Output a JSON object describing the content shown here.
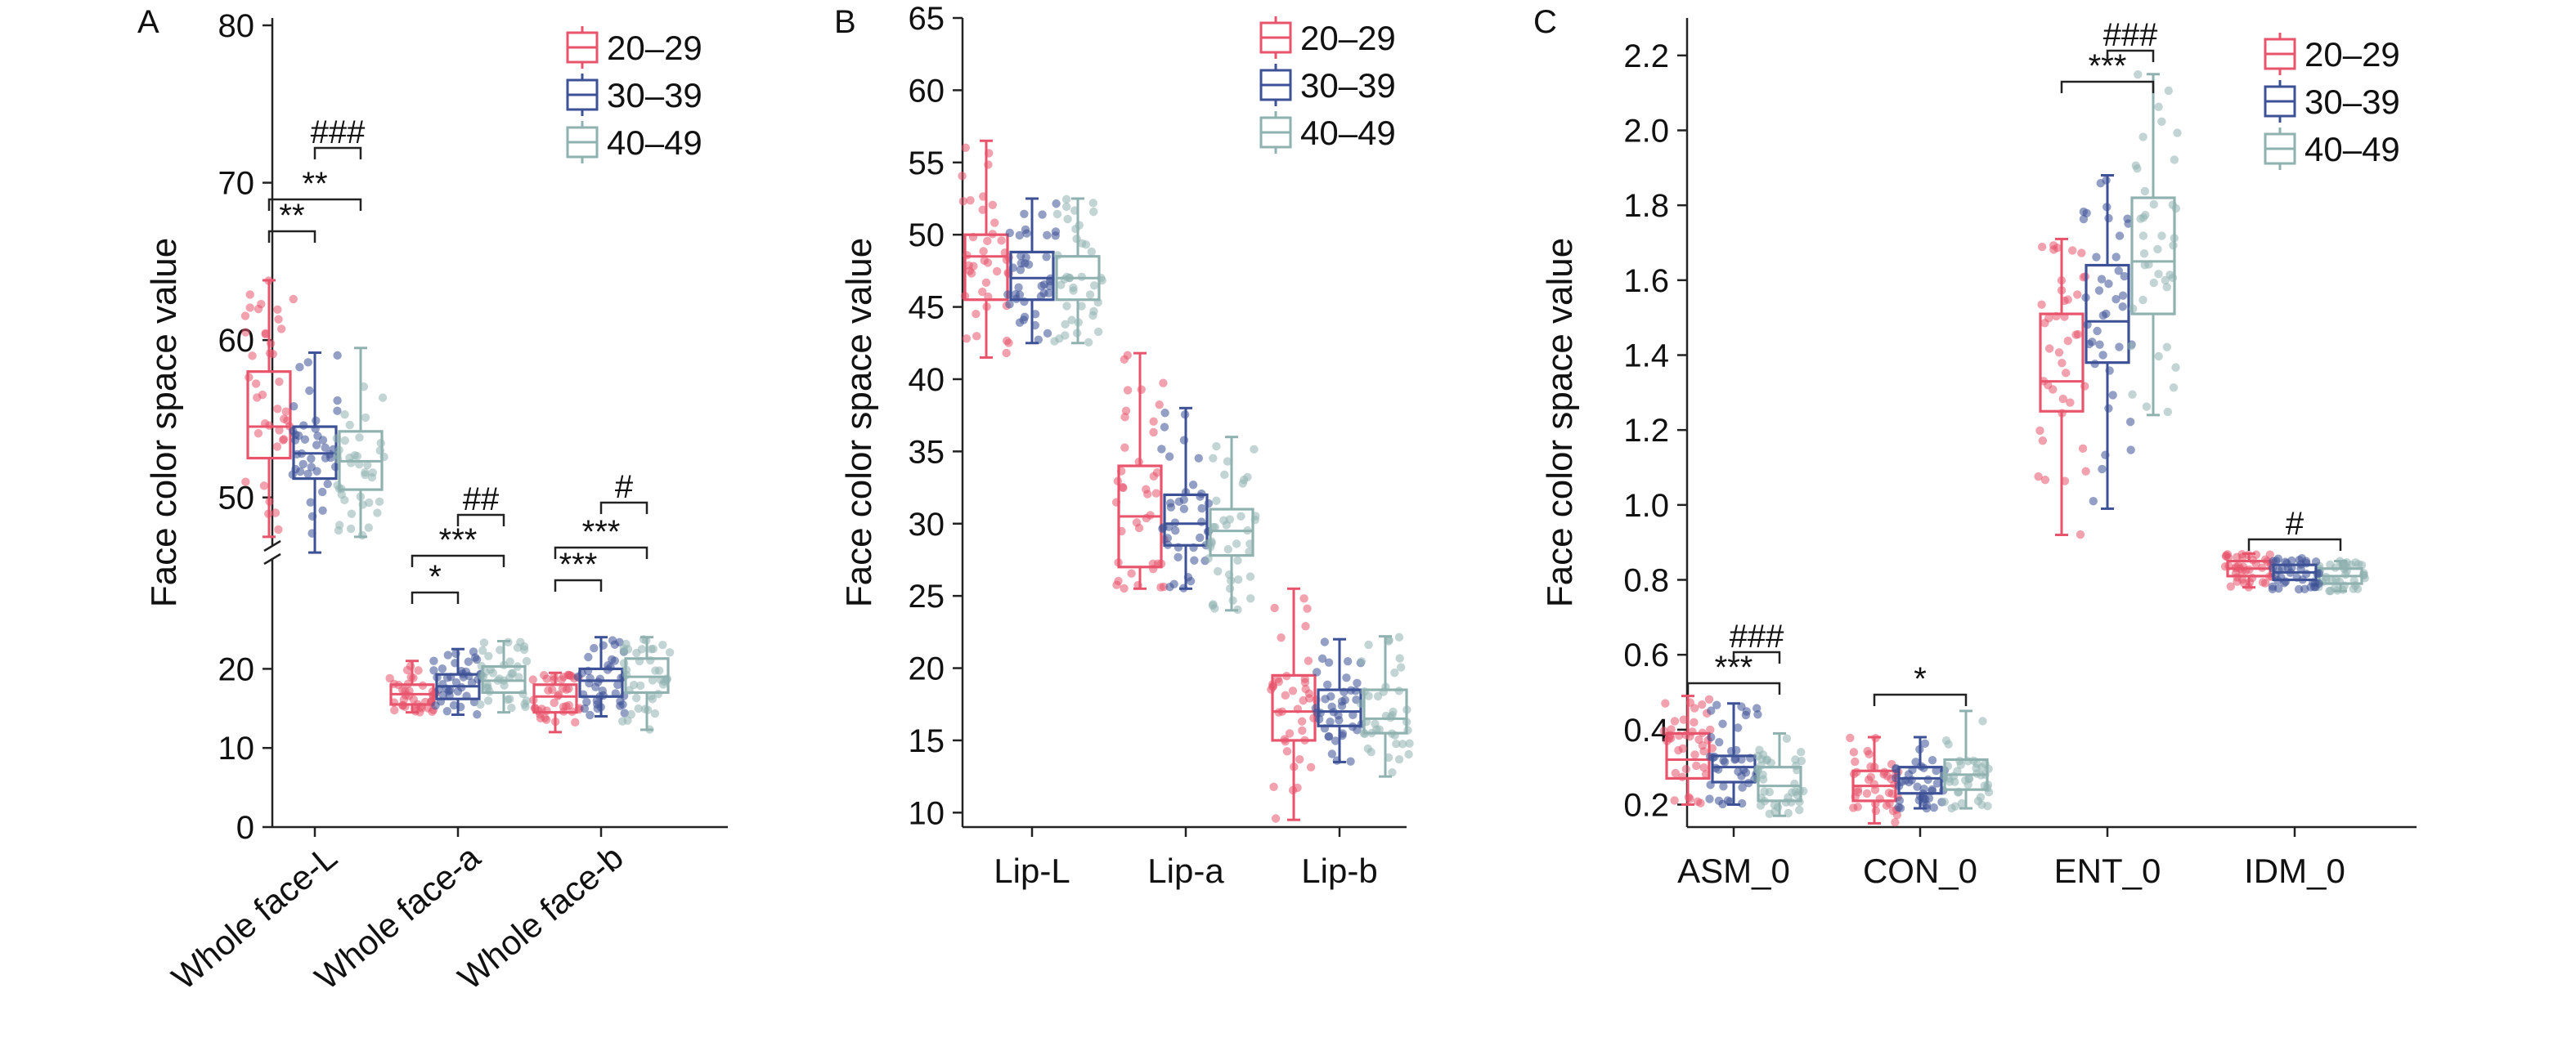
{
  "chart_data": [
    {
      "panel": "A",
      "type": "box",
      "ylabel": "Face color space value",
      "y_segments": [
        {
          "range": [
            0,
            25
          ],
          "ticks": [
            0,
            10,
            20
          ]
        },
        {
          "range": [
            45,
            80
          ],
          "ticks": [
            50,
            60,
            70,
            80
          ]
        }
      ],
      "y_break": true,
      "categories": [
        "Whole face-L",
        "Whole face-a",
        "Whole face-b"
      ],
      "legend": {
        "position": "top-right",
        "entries": [
          "20–29",
          "30–39",
          "40–49"
        ]
      },
      "series": [
        {
          "name": "20–29",
          "color": "#e8546b",
          "boxes": [
            {
              "min": 47.5,
              "q1": 52.5,
              "median": 54.5,
              "q3": 58.0,
              "max": 63.8
            },
            {
              "min": 14.5,
              "q1": 15.5,
              "median": 16.8,
              "q3": 18.0,
              "max": 21.0
            },
            {
              "min": 12.0,
              "q1": 14.5,
              "median": 16.5,
              "q3": 18.0,
              "max": 19.5
            }
          ]
        },
        {
          "name": "30–39",
          "color": "#3d5196",
          "boxes": [
            {
              "min": 46.5,
              "q1": 51.2,
              "median": 52.8,
              "q3": 54.5,
              "max": 59.2
            },
            {
              "min": 14.2,
              "q1": 16.2,
              "median": 17.8,
              "q3": 19.3,
              "max": 22.5
            },
            {
              "min": 14.0,
              "q1": 16.5,
              "median": 18.5,
              "q3": 20.0,
              "max": 24.0
            }
          ]
        },
        {
          "name": "40–49",
          "color": "#8fb2b0",
          "boxes": [
            {
              "min": 47.5,
              "q1": 50.5,
              "median": 52.3,
              "q3": 54.2,
              "max": 59.5
            },
            {
              "min": 14.5,
              "q1": 17.0,
              "median": 18.5,
              "q3": 20.3,
              "max": 23.5
            },
            {
              "min": 12.3,
              "q1": 17.0,
              "median": 19.0,
              "q3": 21.3,
              "max": 24.0
            }
          ]
        }
      ],
      "annotations": [
        {
          "label": "**",
          "from": 0,
          "to": 1,
          "cat": 0
        },
        {
          "label": "**",
          "from": 0,
          "to": 2,
          "cat": 0
        },
        {
          "label": "###",
          "from": 1,
          "to": 2,
          "cat": 0
        },
        {
          "label": "*",
          "from": 0,
          "to": 1,
          "cat": 1
        },
        {
          "label": "***",
          "from": 0,
          "to": 2,
          "cat": 1
        },
        {
          "label": "##",
          "from": 1,
          "to": 2,
          "cat": 1
        },
        {
          "label": "***",
          "from": 0,
          "to": 1,
          "cat": 2
        },
        {
          "label": "***",
          "from": 0,
          "to": 2,
          "cat": 2
        },
        {
          "label": "#",
          "from": 1,
          "to": 2,
          "cat": 2
        }
      ]
    },
    {
      "panel": "B",
      "type": "box",
      "ylabel": "Face color space value",
      "ylim": [
        9,
        65
      ],
      "yticks": [
        10,
        15,
        20,
        25,
        30,
        35,
        40,
        45,
        50,
        55,
        60,
        65
      ],
      "categories": [
        "Lip-L",
        "Lip-a",
        "Lip-b"
      ],
      "legend": {
        "position": "top-right",
        "entries": [
          "20–29",
          "30–39",
          "40–49"
        ]
      },
      "series": [
        {
          "name": "20–29",
          "color": "#e8546b",
          "boxes": [
            {
              "min": 41.5,
              "q1": 45.5,
              "median": 48.5,
              "q3": 50.0,
              "max": 56.5
            },
            {
              "min": 25.5,
              "q1": 27.0,
              "median": 30.5,
              "q3": 34.0,
              "max": 41.8
            },
            {
              "min": 9.5,
              "q1": 15.0,
              "median": 17.0,
              "q3": 19.5,
              "max": 25.5
            }
          ]
        },
        {
          "name": "30–39",
          "color": "#3d5196",
          "boxes": [
            {
              "min": 42.5,
              "q1": 45.5,
              "median": 47.0,
              "q3": 48.8,
              "max": 52.5
            },
            {
              "min": 25.5,
              "q1": 28.5,
              "median": 30.0,
              "q3": 32.0,
              "max": 38.0
            },
            {
              "min": 13.5,
              "q1": 16.0,
              "median": 17.0,
              "q3": 18.5,
              "max": 22.0
            }
          ]
        },
        {
          "name": "40–49",
          "color": "#8fb2b0",
          "boxes": [
            {
              "min": 42.5,
              "q1": 45.5,
              "median": 47.0,
              "q3": 48.5,
              "max": 52.5
            },
            {
              "min": 24.0,
              "q1": 27.8,
              "median": 29.5,
              "q3": 31.0,
              "max": 36.0
            },
            {
              "min": 12.5,
              "q1": 15.5,
              "median": 16.5,
              "q3": 18.5,
              "max": 22.2
            }
          ]
        }
      ],
      "annotations": []
    },
    {
      "panel": "C",
      "type": "box",
      "ylabel": "Face color space value",
      "ylim": [
        0.14,
        2.3
      ],
      "yticks": [
        0.2,
        0.4,
        0.6,
        0.8,
        1.0,
        1.2,
        1.4,
        1.6,
        1.8,
        2.0,
        2.2
      ],
      "yticklabels": [
        "0.2",
        "0.4",
        "0.6",
        "0.8",
        "1.0",
        "1.2",
        "1.4",
        "1.6",
        "1.8",
        "2.0",
        "2.2"
      ],
      "categories": [
        "ASM_0",
        "CON_0",
        "ENT_0",
        "IDM_0"
      ],
      "legend": {
        "position": "top-right",
        "entries": [
          "20–29",
          "30–39",
          "40–49"
        ]
      },
      "series": [
        {
          "name": "20–29",
          "color": "#e8546b",
          "boxes": [
            {
              "min": 0.2,
              "q1": 0.27,
              "median": 0.32,
              "q3": 0.39,
              "max": 0.49
            },
            {
              "min": 0.15,
              "q1": 0.21,
              "median": 0.25,
              "q3": 0.29,
              "max": 0.38
            },
            {
              "min": 0.92,
              "q1": 1.25,
              "median": 1.33,
              "q3": 1.51,
              "max": 1.71
            },
            {
              "min": 0.78,
              "q1": 0.81,
              "median": 0.83,
              "q3": 0.85,
              "max": 0.87
            }
          ]
        },
        {
          "name": "30–39",
          "color": "#3d5196",
          "boxes": [
            {
              "min": 0.2,
              "q1": 0.26,
              "median": 0.3,
              "q3": 0.33,
              "max": 0.47
            },
            {
              "min": 0.19,
              "q1": 0.23,
              "median": 0.27,
              "q3": 0.3,
              "max": 0.38
            },
            {
              "min": 0.99,
              "q1": 1.38,
              "median": 1.49,
              "q3": 1.64,
              "max": 1.88
            }
          ]
        },
        {
          "name": "40–49",
          "color": "#8fb2b0",
          "boxes": [
            {
              "min": 0.17,
              "q1": 0.21,
              "median": 0.25,
              "q3": 0.3,
              "max": 0.39
            },
            {
              "min": 0.19,
              "q1": 0.24,
              "median": 0.28,
              "q3": 0.32,
              "max": 0.45
            },
            {
              "min": 1.24,
              "q1": 1.51,
              "median": 1.65,
              "q3": 1.82,
              "max": 2.15
            },
            {
              "min": 0.77,
              "q1": 0.79,
              "median": 0.81,
              "q3": 0.83,
              "max": 0.85
            }
          ]
        }
      ],
      "annotations": [
        {
          "label": "***",
          "from": 0,
          "to": 2,
          "cat": 0
        },
        {
          "label": "###",
          "from": 1,
          "to": 2,
          "cat": 0
        },
        {
          "label": "*",
          "from": 0,
          "to": 2,
          "cat": 1
        },
        {
          "label": "***",
          "from": 0,
          "to": 2,
          "cat": 2
        },
        {
          "label": "###",
          "from": 1,
          "to": 2,
          "cat": 2
        },
        {
          "label": "#",
          "from": 0,
          "to": 2,
          "cat": 3
        }
      ]
    }
  ]
}
